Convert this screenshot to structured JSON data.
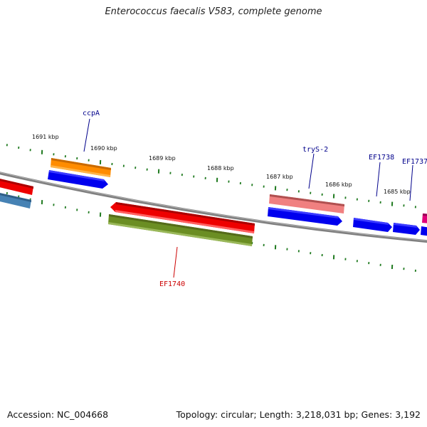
{
  "title": "Enterococcus faecalis V583, complete genome",
  "footer": {
    "accession": "Accession: NC_004668",
    "summary": "Topology: circular; Length: 3,218,031 bp; Genes: 3,192"
  },
  "kbp_labels": [
    "1691 kbp",
    "1690 kbp",
    "1689 kbp",
    "1688 kbp",
    "1687 kbp",
    "1686 kbp",
    "1685 kbp"
  ],
  "gene_labels": {
    "ccpA": "ccpA",
    "trys2": "tryS-2",
    "ef1738": "EF1738",
    "ef1737": "EF1737",
    "ef1740": "EF1740"
  },
  "colors": {
    "backbone": "#808080",
    "tick": "#1f7a1f",
    "gene_blue": "#0000ee",
    "gene_red": "#ee0000",
    "gene_orange": "#ff8c00",
    "gene_pink": "#f08080",
    "gene_olive": "#6b8e23",
    "gene_steelblue": "#4682b4",
    "gene_magenta": "#e0007a",
    "label_blue": "#00008b",
    "label_red": "#cc0000"
  }
}
